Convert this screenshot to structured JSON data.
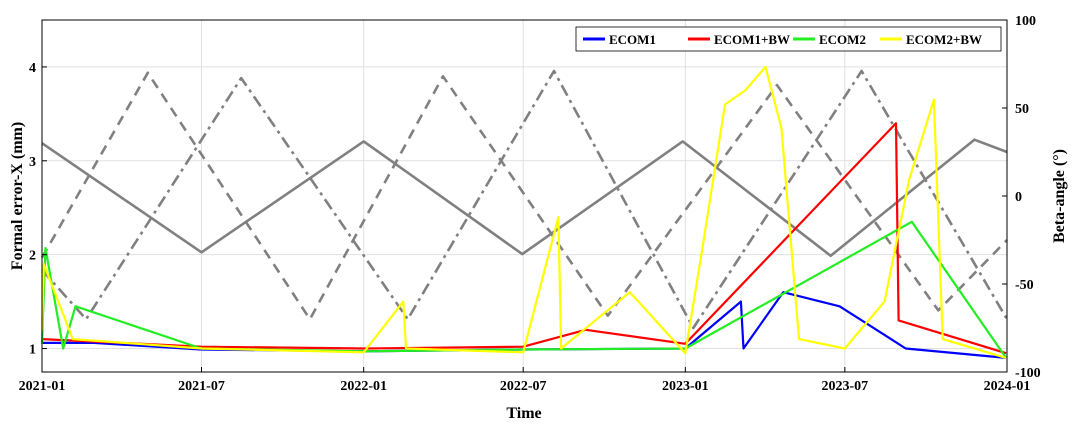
{
  "chart_data": {
    "type": "line",
    "xlabel": "Time",
    "ylabel_left": "Formal error-X (mm)",
    "ylabel_right": "Beta-angle (°)",
    "x_range": [
      "2021-01-01",
      "2024-01-01"
    ],
    "x_ticks": [
      "2021-01",
      "2021-07",
      "2022-01",
      "2022-07",
      "2023-01",
      "2023-07",
      "2024-01"
    ],
    "ylim_left": [
      0.75,
      4.5
    ],
    "yticks_left": [
      1,
      2,
      3,
      4
    ],
    "ylim_right": [
      -100,
      100
    ],
    "yticks_right": [
      -100,
      -50,
      0,
      50,
      100
    ],
    "grid": true,
    "legend": {
      "placement": "top-right",
      "orientation": "horizontal"
    },
    "series": [
      {
        "name": "ECOM1",
        "color": "#0000ff",
        "axis": "left",
        "points": [
          [
            "2021-01-01",
            1.06
          ],
          [
            "2021-03-01",
            1.06
          ],
          [
            "2021-07-01",
            0.99
          ],
          [
            "2022-01-01",
            0.97
          ],
          [
            "2022-07-01",
            0.99
          ],
          [
            "2023-01-01",
            1.0
          ],
          [
            "2023-03-05",
            1.5
          ],
          [
            "2023-03-08",
            1.0
          ],
          [
            "2023-04-22",
            1.6
          ],
          [
            "2023-06-25",
            1.45
          ],
          [
            "2023-09-08",
            1.0
          ],
          [
            "2023-12-31",
            0.9
          ]
        ]
      },
      {
        "name": "ECOM1+BW",
        "color": "#ff0000",
        "axis": "left",
        "points": [
          [
            "2021-01-01",
            1.1
          ],
          [
            "2021-07-01",
            1.02
          ],
          [
            "2022-01-01",
            1.0
          ],
          [
            "2022-07-01",
            1.02
          ],
          [
            "2022-09-10",
            1.2
          ],
          [
            "2023-01-01",
            1.05
          ],
          [
            "2023-08-28",
            3.4
          ],
          [
            "2023-08-31",
            1.3
          ],
          [
            "2023-12-31",
            0.95
          ]
        ]
      },
      {
        "name": "ECOM2",
        "color": "#22ee22",
        "axis": "left",
        "points": [
          [
            "2021-01-01",
            1.05
          ],
          [
            "2021-01-05",
            2.07
          ],
          [
            "2021-01-25",
            1.0
          ],
          [
            "2021-02-08",
            1.45
          ],
          [
            "2021-07-01",
            1.0
          ],
          [
            "2022-01-01",
            0.97
          ],
          [
            "2022-07-01",
            0.99
          ],
          [
            "2023-01-01",
            1.0
          ],
          [
            "2023-09-15",
            2.35
          ],
          [
            "2023-12-31",
            0.9
          ]
        ]
      },
      {
        "name": "ECOM2+BW",
        "color": "#ffff00",
        "axis": "left",
        "points": [
          [
            "2021-01-01",
            1.2
          ],
          [
            "2021-01-03",
            1.9
          ],
          [
            "2021-02-05",
            1.1
          ],
          [
            "2021-07-01",
            1.0
          ],
          [
            "2022-01-01",
            0.96
          ],
          [
            "2022-02-15",
            1.5
          ],
          [
            "2022-02-18",
            1.0
          ],
          [
            "2022-07-01",
            0.96
          ],
          [
            "2022-08-10",
            2.4
          ],
          [
            "2022-08-13",
            1.0
          ],
          [
            "2022-10-30",
            1.6
          ],
          [
            "2023-01-01",
            0.95
          ],
          [
            "2023-01-20",
            2.05
          ],
          [
            "2023-02-15",
            3.6
          ],
          [
            "2023-03-10",
            3.75
          ],
          [
            "2023-04-02",
            4.0
          ],
          [
            "2023-04-20",
            3.35
          ],
          [
            "2023-05-10",
            1.1
          ],
          [
            "2023-07-01",
            1.0
          ],
          [
            "2023-08-15",
            1.5
          ],
          [
            "2023-09-12",
            2.8
          ],
          [
            "2023-10-10",
            3.65
          ],
          [
            "2023-10-20",
            1.1
          ],
          [
            "2023-12-31",
            0.9
          ]
        ]
      },
      {
        "name": "",
        "color": "#808080",
        "style": "solid",
        "axis": "right",
        "points": [
          [
            "2021-01-01",
            30
          ],
          [
            "2021-07-01",
            -32
          ],
          [
            "2022-01-01",
            31
          ],
          [
            "2022-06-30",
            -33
          ],
          [
            "2022-12-29",
            31
          ],
          [
            "2023-06-15",
            -34
          ],
          [
            "2023-11-25",
            32
          ],
          [
            "2024-01-01",
            25
          ]
        ]
      },
      {
        "name": "",
        "color": "#808080",
        "style": "dashed",
        "axis": "right",
        "points": [
          [
            "2021-01-01",
            -35
          ],
          [
            "2021-05-01",
            70
          ],
          [
            "2021-11-01",
            -70
          ],
          [
            "2022-04-01",
            68
          ],
          [
            "2022-10-05",
            -68
          ],
          [
            "2023-04-15",
            63
          ],
          [
            "2023-10-15",
            -65
          ],
          [
            "2024-01-01",
            -25
          ]
        ]
      },
      {
        "name": "",
        "color": "#808080",
        "style": "dashdot",
        "axis": "right",
        "points": [
          [
            "2021-01-01",
            -42
          ],
          [
            "2021-02-20",
            -70
          ],
          [
            "2021-08-15",
            67
          ],
          [
            "2022-02-20",
            -70
          ],
          [
            "2022-08-05",
            71
          ],
          [
            "2023-01-10",
            -75
          ],
          [
            "2023-07-20",
            71
          ],
          [
            "2024-01-01",
            -70
          ]
        ]
      }
    ]
  }
}
